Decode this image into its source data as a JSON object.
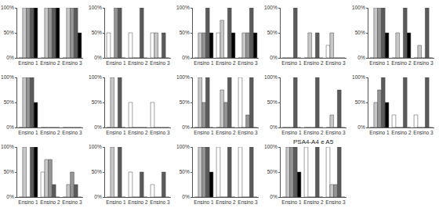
{
  "chart_data": [
    {
      "type": "bar",
      "categories": [
        "Ensino 1",
        "Ensino 2",
        "Ensino 3"
      ],
      "ylim": [
        0,
        100
      ],
      "yticks": [
        {
          "value": 0,
          "label": "0%"
        },
        {
          "value": 50,
          "label": "50%"
        },
        {
          "value": 100,
          "label": "100%"
        }
      ],
      "grid": false,
      "series": [
        {
          "color": "#ffffff",
          "values": [
            0,
            0,
            0
          ]
        },
        {
          "color": "#c8c8c8",
          "values": [
            100,
            100,
            100
          ]
        },
        {
          "color": "#969696",
          "values": [
            100,
            100,
            100
          ]
        },
        {
          "color": "#5a5a5a",
          "values": [
            100,
            100,
            100
          ]
        },
        {
          "color": "#000000",
          "values": [
            100,
            100,
            50
          ]
        }
      ]
    },
    {
      "type": "bar",
      "categories": [
        "Ensino 1",
        "Ensino 2",
        "Ensino 3"
      ],
      "ylim": [
        0,
        100
      ],
      "yticks": [
        {
          "value": 0,
          "label": "0%"
        },
        {
          "value": 50,
          "label": "50%"
        },
        {
          "value": 100,
          "label": "100%"
        }
      ],
      "grid": false,
      "series": [
        {
          "color": "#ffffff",
          "values": [
            50,
            50,
            50
          ]
        },
        {
          "color": "#c8c8c8",
          "values": [
            0,
            0,
            50
          ]
        },
        {
          "color": "#969696",
          "values": [
            100,
            0,
            0
          ]
        },
        {
          "color": "#5a5a5a",
          "values": [
            100,
            100,
            50
          ]
        },
        {
          "color": "#000000",
          "values": [
            0,
            0,
            0
          ]
        }
      ]
    },
    {
      "type": "bar",
      "categories": [
        "Ensino 1",
        "Ensino 2",
        "Ensino 3"
      ],
      "ylim": [
        0,
        100
      ],
      "yticks": [
        {
          "value": 0,
          "label": "0%"
        },
        {
          "value": 50,
          "label": "50%"
        },
        {
          "value": 100,
          "label": "100%"
        }
      ],
      "grid": false,
      "series": [
        {
          "color": "#ffffff",
          "values": [
            0,
            50,
            0
          ]
        },
        {
          "color": "#c8c8c8",
          "values": [
            50,
            75,
            50
          ]
        },
        {
          "color": "#969696",
          "values": [
            50,
            0,
            50
          ]
        },
        {
          "color": "#5a5a5a",
          "values": [
            100,
            100,
            100
          ]
        },
        {
          "color": "#000000",
          "values": [
            50,
            50,
            50
          ]
        }
      ]
    },
    {
      "type": "bar",
      "categories": [
        "Ensino 1",
        "Ensino 2",
        "Ensino 3"
      ],
      "ylim": [
        0,
        100
      ],
      "yticks": [
        {
          "value": 0,
          "label": "0%"
        },
        {
          "value": 50,
          "label": "50%"
        },
        {
          "value": 100,
          "label": "100%"
        }
      ],
      "grid": false,
      "series": [
        {
          "color": "#ffffff",
          "values": [
            0,
            0,
            25
          ]
        },
        {
          "color": "#c8c8c8",
          "values": [
            0,
            50,
            50
          ]
        },
        {
          "color": "#969696",
          "values": [
            0,
            0,
            0
          ]
        },
        {
          "color": "#5a5a5a",
          "values": [
            100,
            50,
            0
          ]
        },
        {
          "color": "#000000",
          "values": [
            0,
            0,
            0
          ]
        }
      ]
    },
    {
      "type": "bar",
      "categories": [
        "Ensino 1",
        "Ensino 2",
        "Ensino 3"
      ],
      "ylim": [
        0,
        100
      ],
      "yticks": [
        {
          "value": 0,
          "label": "0%"
        },
        {
          "value": 50,
          "label": "50%"
        },
        {
          "value": 100,
          "label": "100%"
        }
      ],
      "grid": false,
      "series": [
        {
          "color": "#ffffff",
          "values": [
            0,
            0,
            0
          ]
        },
        {
          "color": "#c8c8c8",
          "values": [
            100,
            50,
            25
          ]
        },
        {
          "color": "#969696",
          "values": [
            100,
            0,
            0
          ]
        },
        {
          "color": "#5a5a5a",
          "values": [
            100,
            100,
            100
          ]
        },
        {
          "color": "#000000",
          "values": [
            50,
            50,
            0
          ]
        }
      ]
    },
    {
      "type": "bar",
      "categories": [
        "Ensino 1",
        "Ensino 2",
        "Ensino 3"
      ],
      "ylim": [
        0,
        100
      ],
      "yticks": [
        {
          "value": 0,
          "label": "0%"
        },
        {
          "value": 50,
          "label": "50%"
        },
        {
          "value": 100,
          "label": "100%"
        }
      ],
      "grid": false,
      "series": [
        {
          "color": "#ffffff",
          "values": [
            0,
            0,
            0
          ]
        },
        {
          "color": "#c8c8c8",
          "values": [
            100,
            0,
            0
          ]
        },
        {
          "color": "#969696",
          "values": [
            100,
            0,
            0
          ]
        },
        {
          "color": "#5a5a5a",
          "values": [
            100,
            0,
            0
          ]
        },
        {
          "color": "#000000",
          "values": [
            50,
            0,
            0
          ]
        }
      ]
    },
    {
      "type": "bar",
      "categories": [
        "Ensino 1",
        "Ensino 2",
        "Ensino 3"
      ],
      "ylim": [
        0,
        100
      ],
      "yticks": [
        {
          "value": 0,
          "label": "0%"
        },
        {
          "value": 50,
          "label": "50%"
        },
        {
          "value": 100,
          "label": "100%"
        }
      ],
      "grid": false,
      "series": [
        {
          "color": "#ffffff",
          "values": [
            0,
            50,
            50
          ]
        },
        {
          "color": "#c8c8c8",
          "values": [
            100,
            0,
            0
          ]
        },
        {
          "color": "#969696",
          "values": [
            0,
            0,
            0
          ]
        },
        {
          "color": "#5a5a5a",
          "values": [
            100,
            0,
            0
          ]
        },
        {
          "color": "#000000",
          "values": [
            0,
            0,
            0
          ]
        }
      ]
    },
    {
      "type": "bar",
      "categories": [
        "Ensino 1",
        "Ensino 2",
        "Ensino 3"
      ],
      "ylim": [
        0,
        100
      ],
      "yticks": [
        {
          "value": 0,
          "label": "0%"
        },
        {
          "value": 50,
          "label": "50%"
        },
        {
          "value": 100,
          "label": "100%"
        }
      ],
      "grid": false,
      "series": [
        {
          "color": "#ffffff",
          "values": [
            0,
            0,
            100
          ]
        },
        {
          "color": "#c8c8c8",
          "values": [
            100,
            75,
            0
          ]
        },
        {
          "color": "#969696",
          "values": [
            50,
            50,
            25
          ]
        },
        {
          "color": "#5a5a5a",
          "values": [
            100,
            100,
            100
          ]
        },
        {
          "color": "#000000",
          "values": [
            0,
            0,
            0
          ]
        }
      ]
    },
    {
      "type": "bar",
      "categories": [
        "Ensino 1",
        "Ensino 2",
        "Ensino 3"
      ],
      "ylim": [
        0,
        100
      ],
      "yticks": [
        {
          "value": 0,
          "label": "0%"
        },
        {
          "value": 50,
          "label": "50%"
        },
        {
          "value": 100,
          "label": "100%"
        }
      ],
      "grid": false,
      "series": [
        {
          "color": "#ffffff",
          "values": [
            0,
            0,
            0
          ]
        },
        {
          "color": "#c8c8c8",
          "values": [
            0,
            0,
            25
          ]
        },
        {
          "color": "#969696",
          "values": [
            0,
            0,
            0
          ]
        },
        {
          "color": "#5a5a5a",
          "values": [
            100,
            100,
            75
          ]
        },
        {
          "color": "#000000",
          "values": [
            0,
            0,
            0
          ]
        }
      ]
    },
    {
      "type": "bar",
      "categories": [
        "Ensino 1",
        "Ensino 2",
        "Ensino 3"
      ],
      "ylim": [
        0,
        100
      ],
      "yticks": [
        {
          "value": 0,
          "label": "0%"
        },
        {
          "value": 50,
          "label": "50%"
        },
        {
          "value": 100,
          "label": "100%"
        }
      ],
      "grid": false,
      "series": [
        {
          "color": "#ffffff",
          "values": [
            0,
            25,
            25
          ]
        },
        {
          "color": "#c8c8c8",
          "values": [
            50,
            0,
            0
          ]
        },
        {
          "color": "#969696",
          "values": [
            75,
            0,
            0
          ]
        },
        {
          "color": "#5a5a5a",
          "values": [
            100,
            100,
            100
          ]
        },
        {
          "color": "#000000",
          "values": [
            50,
            0,
            0
          ]
        }
      ]
    },
    {
      "type": "bar",
      "categories": [
        "Ensino 1",
        "Ensino 2",
        "Ensino 3"
      ],
      "ylim": [
        0,
        100
      ],
      "yticks": [
        {
          "value": 0,
          "label": "0%"
        },
        {
          "value": 50,
          "label": "50%"
        },
        {
          "value": 100,
          "label": "100%"
        }
      ],
      "grid": false,
      "series": [
        {
          "color": "#ffffff",
          "values": [
            0,
            50,
            0
          ]
        },
        {
          "color": "#c8c8c8",
          "values": [
            100,
            75,
            25
          ]
        },
        {
          "color": "#969696",
          "values": [
            0,
            75,
            50
          ]
        },
        {
          "color": "#5a5a5a",
          "values": [
            100,
            25,
            25
          ]
        },
        {
          "color": "#000000",
          "values": [
            100,
            0,
            0
          ]
        }
      ]
    },
    {
      "type": "bar",
      "categories": [
        "Ensino 1",
        "Ensino 2",
        "Ensino 3"
      ],
      "ylim": [
        0,
        100
      ],
      "yticks": [
        {
          "value": 0,
          "label": "0%"
        },
        {
          "value": 50,
          "label": "50%"
        },
        {
          "value": 100,
          "label": "100%"
        }
      ],
      "grid": false,
      "series": [
        {
          "color": "#ffffff",
          "values": [
            0,
            50,
            25
          ]
        },
        {
          "color": "#c8c8c8",
          "values": [
            100,
            0,
            0
          ]
        },
        {
          "color": "#969696",
          "values": [
            0,
            0,
            0
          ]
        },
        {
          "color": "#5a5a5a",
          "values": [
            100,
            50,
            50
          ]
        },
        {
          "color": "#000000",
          "values": [
            0,
            0,
            0
          ]
        }
      ]
    },
    {
      "type": "bar",
      "categories": [
        "Ensino 1",
        "Ensino 2",
        "Ensino 3"
      ],
      "ylim": [
        0,
        100
      ],
      "yticks": [
        {
          "value": 0,
          "label": "0%"
        },
        {
          "value": 50,
          "label": "50%"
        },
        {
          "value": 100,
          "label": "100%"
        }
      ],
      "grid": false,
      "series": [
        {
          "color": "#ffffff",
          "values": [
            0,
            100,
            100
          ]
        },
        {
          "color": "#c8c8c8",
          "values": [
            100,
            0,
            0
          ]
        },
        {
          "color": "#969696",
          "values": [
            100,
            0,
            0
          ]
        },
        {
          "color": "#5a5a5a",
          "values": [
            100,
            100,
            100
          ]
        },
        {
          "color": "#000000",
          "values": [
            50,
            0,
            0
          ]
        }
      ]
    },
    {
      "type": "bar",
      "title": "PSA4-A4 e A5",
      "categories": [
        "Ensino 1",
        "Ensino 2",
        "Ensino 3"
      ],
      "ylim": [
        0,
        100
      ],
      "yticks": [
        {
          "value": 0,
          "label": "0%"
        },
        {
          "value": 50,
          "label": "50%"
        },
        {
          "value": 100,
          "label": "100%"
        }
      ],
      "grid": false,
      "series": [
        {
          "color": "#ffffff",
          "values": [
            0,
            100,
            100
          ]
        },
        {
          "color": "#c8c8c8",
          "values": [
            100,
            0,
            25
          ]
        },
        {
          "color": "#969696",
          "values": [
            100,
            0,
            25
          ]
        },
        {
          "color": "#5a5a5a",
          "values": [
            100,
            100,
            100
          ]
        },
        {
          "color": "#000000",
          "values": [
            50,
            0,
            0
          ]
        }
      ]
    }
  ]
}
